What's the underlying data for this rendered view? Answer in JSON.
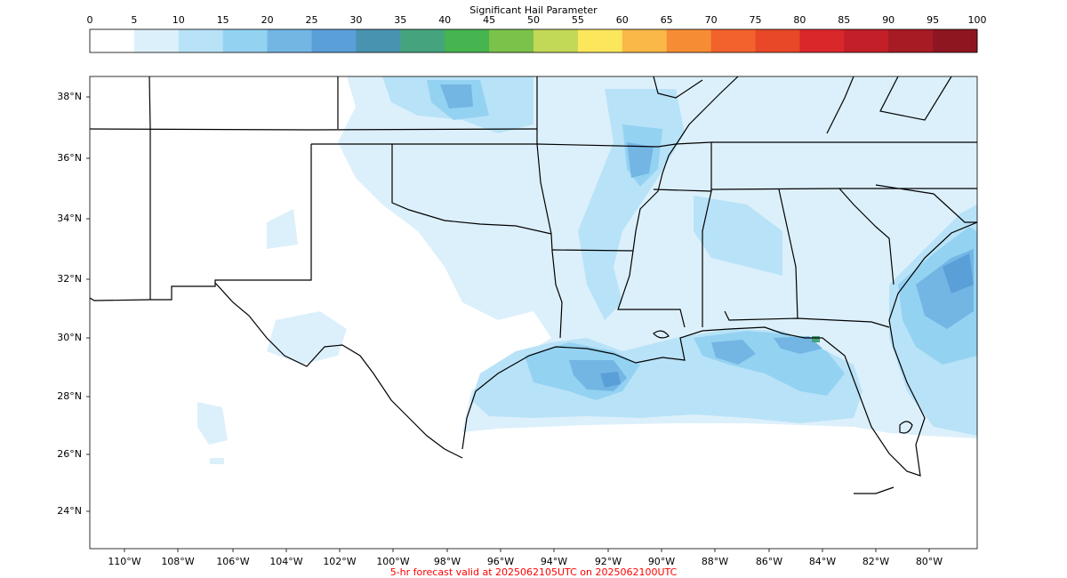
{
  "colorbar": {
    "title": "Significant Hail Parameter",
    "ticks": [
      "0",
      "5",
      "10",
      "15",
      "20",
      "25",
      "30",
      "35",
      "40",
      "45",
      "50",
      "55",
      "60",
      "65",
      "70",
      "75",
      "80",
      "85",
      "90",
      "95",
      "100"
    ],
    "colors": [
      "#ffffff",
      "#dcf0fb",
      "#b8e2f7",
      "#94d2f2",
      "#73b6e4",
      "#5b9fd8",
      "#4893b0",
      "#45a47d",
      "#46b44f",
      "#7bc24a",
      "#c2d857",
      "#fbe65c",
      "#f9b847",
      "#f68d34",
      "#f2622c",
      "#e84828",
      "#d9272a",
      "#c21f28",
      "#a71b24",
      "#8e1620"
    ]
  },
  "map": {
    "lat_labels": [
      "38°N",
      "36°N",
      "34°N",
      "32°N",
      "30°N",
      "28°N",
      "26°N",
      "24°N"
    ],
    "lon_labels": [
      "110°W",
      "108°W",
      "106°W",
      "104°W",
      "102°W",
      "100°W",
      "98°W",
      "96°W",
      "94°W",
      "92°W",
      "90°W",
      "88°W",
      "86°W",
      "84°W",
      "82°W",
      "80°W"
    ],
    "shading_colors": {
      "light": "#dcf0fb",
      "medium": "#b8e2f7",
      "strong": "#94d2f2",
      "heavy": "#73b6e4",
      "max": "#5b9fd8",
      "peak": "#45a47d"
    }
  },
  "footer": "5-hr forecast valid at 2025062105UTC on 2025062100UTC"
}
